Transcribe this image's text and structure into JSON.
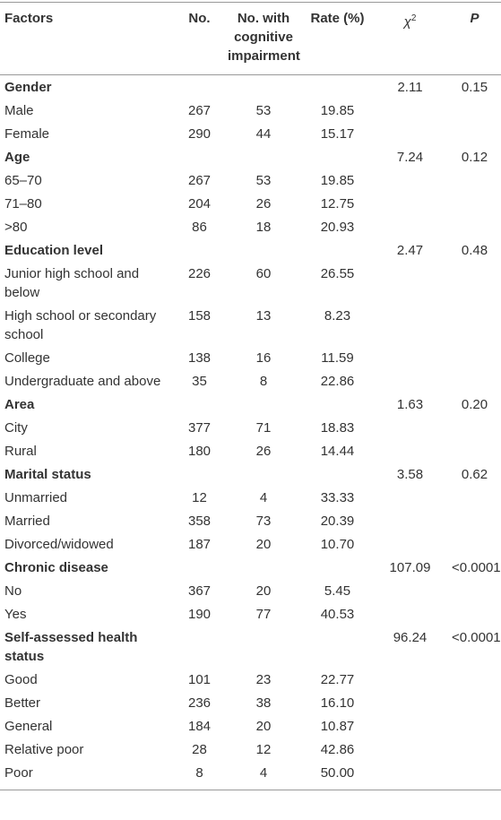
{
  "table": {
    "header": {
      "factors": "Factors",
      "no": "No.",
      "no_with": "No. with cognitive impairment",
      "rate": "Rate (%)",
      "chi2": {
        "base": "χ",
        "sup": "2"
      },
      "p": "P"
    },
    "rows": [
      {
        "label": "Gender",
        "chi2": "2.11",
        "p": "0.15"
      },
      {
        "label": "Male",
        "values": [
          "267",
          "53",
          "19.85"
        ]
      },
      {
        "label": "Female",
        "values": [
          "290",
          "44",
          "15.17"
        ]
      },
      {
        "label": "Age",
        "chi2": "7.24",
        "p": "0.12"
      },
      {
        "label": "65–70",
        "values": [
          "267",
          "53",
          "19.85"
        ]
      },
      {
        "label": "71–80",
        "values": [
          "204",
          "26",
          "12.75"
        ]
      },
      {
        "label": ">80",
        "values": [
          "86",
          "18",
          "20.93"
        ]
      },
      {
        "label": "Education level",
        "chi2": "2.47",
        "p": "0.48"
      },
      {
        "label": "Junior high school and below",
        "values": [
          "226",
          "60",
          "26.55"
        ]
      },
      {
        "label": "High school or secondary school",
        "values": [
          "158",
          "13",
          "8.23"
        ]
      },
      {
        "label": "College",
        "values": [
          "138",
          "16",
          "11.59"
        ]
      },
      {
        "label": "Undergraduate and above",
        "values": [
          "35",
          "8",
          "22.86"
        ]
      },
      {
        "label": "Area",
        "chi2": "1.63",
        "p": "0.20"
      },
      {
        "label": "City",
        "values": [
          "377",
          "71",
          "18.83"
        ]
      },
      {
        "label": "Rural",
        "values": [
          "180",
          "26",
          "14.44"
        ]
      },
      {
        "label": "Marital status",
        "chi2": "3.58",
        "p": "0.62"
      },
      {
        "label": "Unmarried",
        "values": [
          "12",
          "4",
          "33.33"
        ]
      },
      {
        "label": "Married",
        "values": [
          "358",
          "73",
          "20.39"
        ]
      },
      {
        "label": "Divorced/widowed",
        "values": [
          "187",
          "20",
          "10.70"
        ]
      },
      {
        "label": "Chronic disease",
        "chi2": "107.09",
        "p": "<0.0001"
      },
      {
        "label": "No",
        "values": [
          "367",
          "20",
          "5.45"
        ]
      },
      {
        "label": "Yes",
        "values": [
          "190",
          "77",
          "40.53"
        ]
      },
      {
        "label": "Self-assessed health status",
        "chi2": "96.24",
        "p": "<0.0001"
      },
      {
        "label": "Good",
        "values": [
          "101",
          "23",
          "22.77"
        ]
      },
      {
        "label": "Better",
        "values": [
          "236",
          "38",
          "16.10"
        ]
      },
      {
        "label": "General",
        "values": [
          "184",
          "20",
          "10.87"
        ]
      },
      {
        "label": "Relative poor",
        "values": [
          "28",
          "12",
          "42.86"
        ]
      },
      {
        "label": "Poor",
        "values": [
          "8",
          "4",
          "50.00"
        ]
      }
    ]
  }
}
